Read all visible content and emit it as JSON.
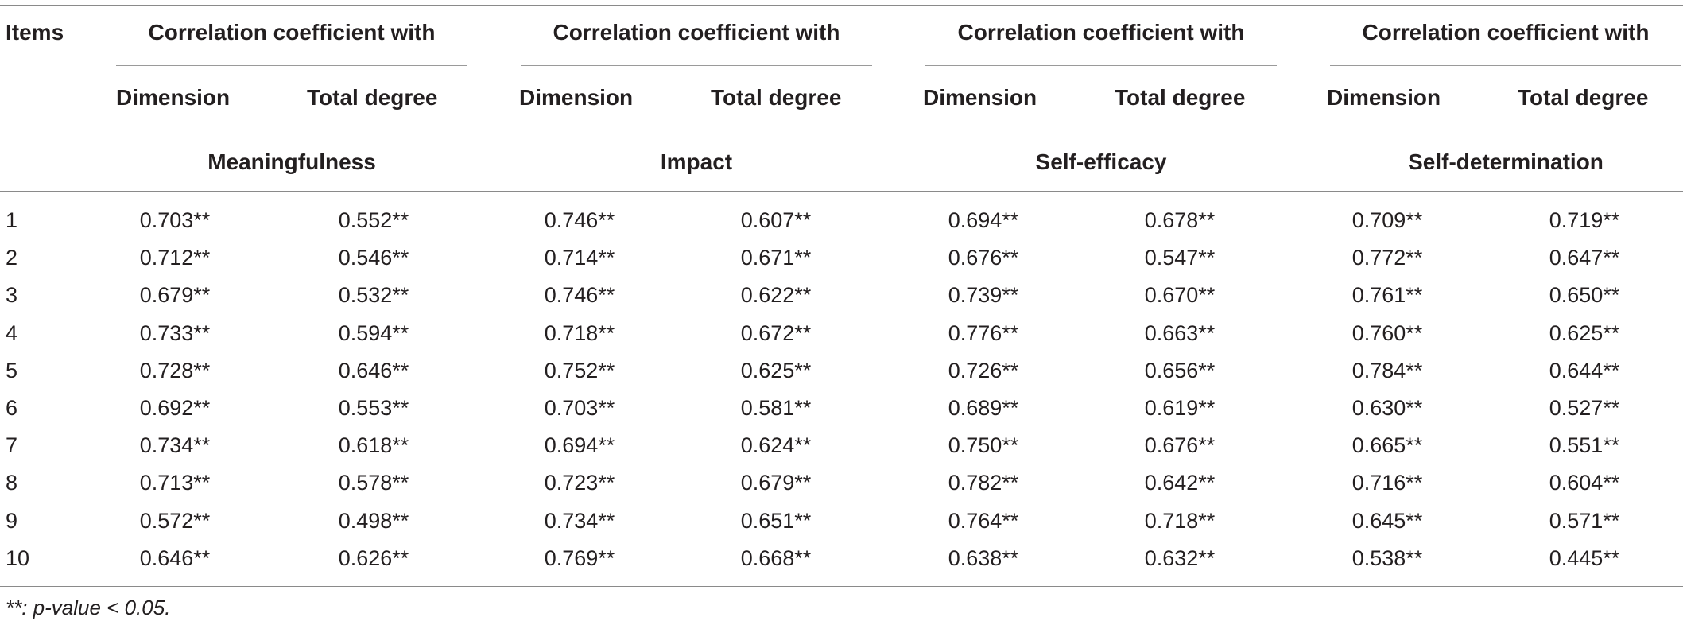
{
  "table": {
    "items_header": "Items",
    "groups": [
      {
        "top": "Correlation coefficient with",
        "sub": [
          "Dimension",
          "Total degree"
        ],
        "dimension": "Meaningfulness"
      },
      {
        "top": "Correlation coefficient with",
        "sub": [
          "Dimension",
          "Total degree"
        ],
        "dimension": "Impact"
      },
      {
        "top": "Correlation coefficient with",
        "sub": [
          "Dimension",
          "Total degree"
        ],
        "dimension": "Self-efficacy"
      },
      {
        "top": "Correlation coefficient with",
        "sub": [
          "Dimension",
          "Total degree"
        ],
        "dimension": "Self-determination"
      }
    ],
    "rows": [
      {
        "item": "1",
        "values": [
          "0.703**",
          "0.552**",
          "0.746**",
          "0.607**",
          "0.694**",
          "0.678**",
          "0.709**",
          "0.719**"
        ]
      },
      {
        "item": "2",
        "values": [
          "0.712**",
          "0.546**",
          "0.714**",
          "0.671**",
          "0.676**",
          "0.547**",
          "0.772**",
          "0.647**"
        ]
      },
      {
        "item": "3",
        "values": [
          "0.679**",
          "0.532**",
          "0.746**",
          "0.622**",
          "0.739**",
          "0.670**",
          "0.761**",
          "0.650**"
        ]
      },
      {
        "item": "4",
        "values": [
          "0.733**",
          "0.594**",
          "0.718**",
          "0.672**",
          "0.776**",
          "0.663**",
          "0.760**",
          "0.625**"
        ]
      },
      {
        "item": "5",
        "values": [
          "0.728**",
          "0.646**",
          "0.752**",
          "0.625**",
          "0.726**",
          "0.656**",
          "0.784**",
          "0.644**"
        ]
      },
      {
        "item": "6",
        "values": [
          "0.692**",
          "0.553**",
          "0.703**",
          "0.581**",
          "0.689**",
          "0.619**",
          "0.630**",
          "0.527**"
        ]
      },
      {
        "item": "7",
        "values": [
          "0.734**",
          "0.618**",
          "0.694**",
          "0.624**",
          "0.750**",
          "0.676**",
          "0.665**",
          "0.551**"
        ]
      },
      {
        "item": "8",
        "values": [
          "0.713**",
          "0.578**",
          "0.723**",
          "0.679**",
          "0.782**",
          "0.642**",
          "0.716**",
          "0.604**"
        ]
      },
      {
        "item": "9",
        "values": [
          "0.572**",
          "0.498**",
          "0.734**",
          "0.651**",
          "0.764**",
          "0.718**",
          "0.645**",
          "0.571**"
        ]
      },
      {
        "item": "10",
        "values": [
          "0.646**",
          "0.626**",
          "0.769**",
          "0.668**",
          "0.638**",
          "0.632**",
          "0.538**",
          "0.445**"
        ]
      }
    ],
    "footnote": "**: p-value < 0.05."
  }
}
